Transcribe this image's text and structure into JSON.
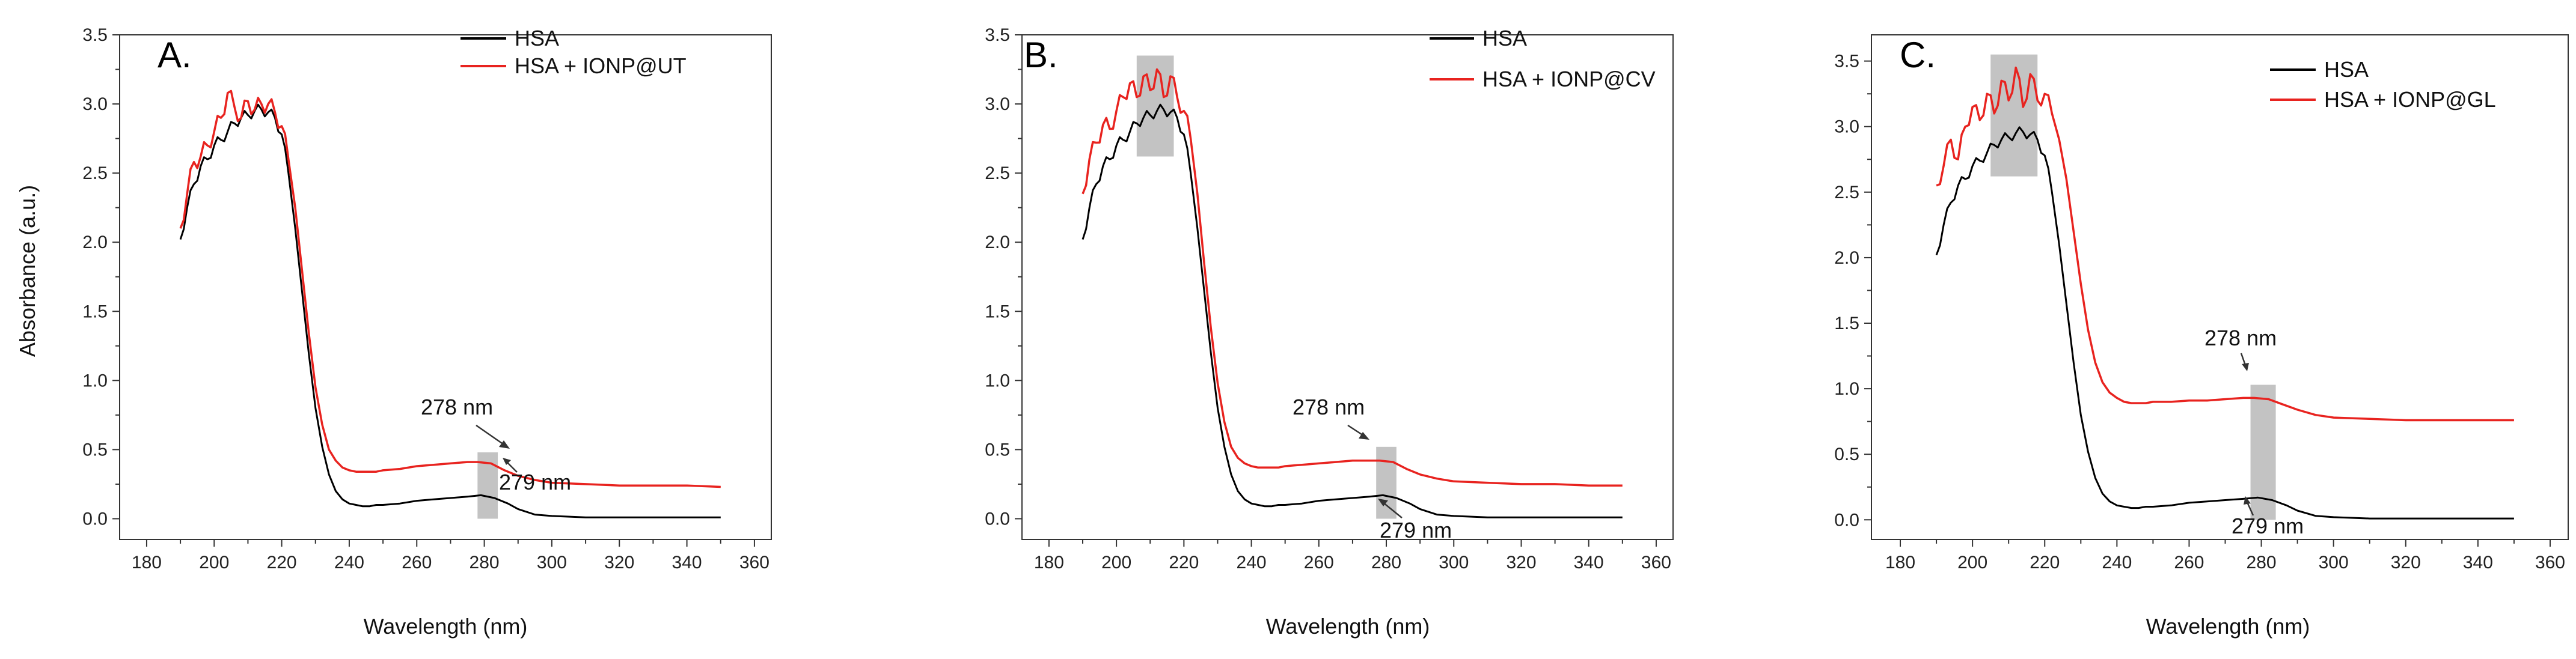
{
  "figure": {
    "background": "#ffffff"
  },
  "colors": {
    "hsa": "#000000",
    "ionp": "#e8231f",
    "highlight": "#bdbdbd",
    "axis": "#333333"
  },
  "chart_data": [
    {
      "panel_label": "A.",
      "type": "line",
      "xlabel": "Wavelength (nm)",
      "ylabel": "Absorbance (a.u.)",
      "xlim": [
        172,
        365
      ],
      "ylim": [
        -0.15,
        3.5
      ],
      "xticks": [
        180,
        200,
        220,
        240,
        260,
        280,
        300,
        320,
        340,
        360
      ],
      "yticks": [
        0.0,
        0.5,
        1.0,
        1.5,
        2.0,
        2.5,
        3.0,
        3.5
      ],
      "series": [
        {
          "name": "HSA",
          "color": "#000000",
          "x": [
            190,
            192,
            194,
            196,
            198,
            200,
            202,
            204,
            206,
            208,
            210,
            212,
            214,
            216,
            218,
            220,
            222,
            224,
            226,
            228,
            230,
            232,
            234,
            236,
            238,
            240,
            242,
            244,
            246,
            248,
            250,
            255,
            260,
            265,
            270,
            275,
            279,
            283,
            287,
            290,
            295,
            300,
            310,
            320,
            330,
            340,
            350
          ],
          "y": [
            2.02,
            2.25,
            2.42,
            2.55,
            2.6,
            2.7,
            2.74,
            2.8,
            2.86,
            2.9,
            2.92,
            2.95,
            2.96,
            2.94,
            2.9,
            2.78,
            2.5,
            2.1,
            1.65,
            1.2,
            0.8,
            0.52,
            0.32,
            0.2,
            0.14,
            0.11,
            0.1,
            0.09,
            0.09,
            0.1,
            0.1,
            0.11,
            0.13,
            0.14,
            0.15,
            0.16,
            0.17,
            0.15,
            0.11,
            0.07,
            0.03,
            0.02,
            0.01,
            0.01,
            0.01,
            0.01,
            0.01
          ]
        },
        {
          "name": "HSA + IONP@UT",
          "color": "#e8231f",
          "x": [
            190,
            192,
            194,
            196,
            198,
            200,
            202,
            204,
            206,
            208,
            210,
            212,
            214,
            216,
            218,
            220,
            222,
            224,
            226,
            228,
            230,
            232,
            234,
            236,
            238,
            240,
            242,
            244,
            246,
            248,
            250,
            255,
            260,
            265,
            270,
            275,
            278,
            282,
            286,
            290,
            295,
            300,
            310,
            320,
            330,
            340,
            350
          ],
          "y": [
            2.1,
            2.35,
            2.58,
            2.62,
            2.7,
            2.8,
            2.9,
            3.08,
            2.98,
            2.9,
            3.02,
            2.96,
            3.0,
            3.0,
            2.94,
            2.84,
            2.6,
            2.25,
            1.8,
            1.35,
            0.95,
            0.68,
            0.5,
            0.42,
            0.37,
            0.35,
            0.34,
            0.34,
            0.34,
            0.34,
            0.35,
            0.36,
            0.38,
            0.39,
            0.4,
            0.41,
            0.41,
            0.4,
            0.35,
            0.31,
            0.28,
            0.26,
            0.25,
            0.24,
            0.24,
            0.24,
            0.23
          ]
        }
      ],
      "annotations": [
        {
          "text": "278 nm"
        },
        {
          "text": "279 nm"
        }
      ],
      "highlight_bands": [
        {
          "x": [
            278,
            284
          ],
          "y": [
            0.0,
            0.48
          ]
        }
      ]
    },
    {
      "panel_label": "B.",
      "type": "line",
      "xlabel": "Wavelength (nm)",
      "ylabel": "",
      "xlim": [
        172,
        365
      ],
      "ylim": [
        -0.15,
        3.5
      ],
      "xticks": [
        180,
        200,
        220,
        240,
        260,
        280,
        300,
        320,
        340,
        360
      ],
      "yticks": [
        0.0,
        0.5,
        1.0,
        1.5,
        2.0,
        2.5,
        3.0,
        3.5
      ],
      "series": [
        {
          "name": "HSA",
          "color": "#000000",
          "x": [
            190,
            192,
            194,
            196,
            198,
            200,
            202,
            204,
            206,
            208,
            210,
            212,
            214,
            216,
            218,
            220,
            222,
            224,
            226,
            228,
            230,
            232,
            234,
            236,
            238,
            240,
            242,
            244,
            246,
            248,
            250,
            255,
            260,
            265,
            270,
            275,
            279,
            283,
            287,
            290,
            295,
            300,
            310,
            320,
            330,
            340,
            350
          ],
          "y": [
            2.02,
            2.25,
            2.42,
            2.55,
            2.6,
            2.7,
            2.74,
            2.8,
            2.86,
            2.9,
            2.92,
            2.95,
            2.96,
            2.94,
            2.9,
            2.78,
            2.5,
            2.1,
            1.65,
            1.2,
            0.8,
            0.52,
            0.32,
            0.2,
            0.14,
            0.11,
            0.1,
            0.09,
            0.09,
            0.1,
            0.1,
            0.11,
            0.13,
            0.14,
            0.15,
            0.16,
            0.17,
            0.15,
            0.11,
            0.07,
            0.03,
            0.02,
            0.01,
            0.01,
            0.01,
            0.01,
            0.01
          ]
        },
        {
          "name": "HSA + IONP@CV",
          "color": "#e8231f",
          "x": [
            190,
            192,
            194,
            196,
            198,
            200,
            202,
            204,
            206,
            208,
            210,
            212,
            214,
            216,
            218,
            220,
            222,
            224,
            226,
            228,
            230,
            232,
            234,
            236,
            238,
            240,
            242,
            244,
            246,
            248,
            250,
            255,
            260,
            265,
            270,
            275,
            278,
            282,
            286,
            290,
            295,
            300,
            310,
            320,
            330,
            340,
            350
          ],
          "y": [
            2.35,
            2.6,
            2.72,
            2.85,
            2.82,
            2.95,
            3.05,
            3.15,
            3.05,
            3.2,
            3.1,
            3.25,
            3.05,
            3.2,
            3.05,
            2.95,
            2.75,
            2.35,
            1.85,
            1.38,
            0.98,
            0.7,
            0.52,
            0.44,
            0.4,
            0.38,
            0.37,
            0.37,
            0.37,
            0.37,
            0.38,
            0.39,
            0.4,
            0.41,
            0.42,
            0.42,
            0.42,
            0.41,
            0.36,
            0.32,
            0.29,
            0.27,
            0.26,
            0.25,
            0.25,
            0.24,
            0.24
          ]
        }
      ],
      "annotations": [
        {
          "text": "278 nm"
        },
        {
          "text": "279 nm"
        }
      ],
      "highlight_bands": [
        {
          "x": [
            206,
            217
          ],
          "y": [
            2.62,
            3.35
          ]
        },
        {
          "x": [
            277,
            283
          ],
          "y": [
            0.0,
            0.52
          ]
        }
      ]
    },
    {
      "panel_label": "C.",
      "type": "line",
      "xlabel": "Wavelength (nm)",
      "ylabel": "",
      "xlim": [
        172,
        365
      ],
      "ylim": [
        -0.15,
        3.7
      ],
      "xticks": [
        180,
        200,
        220,
        240,
        260,
        280,
        300,
        320,
        340,
        360
      ],
      "yticks": [
        0.0,
        0.5,
        1.0,
        1.5,
        2.0,
        2.5,
        3.0,
        3.5
      ],
      "series": [
        {
          "name": "HSA",
          "color": "#000000",
          "x": [
            190,
            192,
            194,
            196,
            198,
            200,
            202,
            204,
            206,
            208,
            210,
            212,
            214,
            216,
            218,
            220,
            222,
            224,
            226,
            228,
            230,
            232,
            234,
            236,
            238,
            240,
            242,
            244,
            246,
            248,
            250,
            255,
            260,
            265,
            270,
            275,
            279,
            283,
            287,
            290,
            295,
            300,
            310,
            320,
            330,
            340,
            350
          ],
          "y": [
            2.02,
            2.25,
            2.42,
            2.55,
            2.6,
            2.7,
            2.74,
            2.8,
            2.86,
            2.9,
            2.92,
            2.95,
            2.96,
            2.94,
            2.9,
            2.78,
            2.5,
            2.1,
            1.65,
            1.2,
            0.8,
            0.52,
            0.32,
            0.2,
            0.14,
            0.11,
            0.1,
            0.09,
            0.09,
            0.1,
            0.1,
            0.11,
            0.13,
            0.14,
            0.15,
            0.16,
            0.17,
            0.15,
            0.11,
            0.07,
            0.03,
            0.02,
            0.01,
            0.01,
            0.01,
            0.01,
            0.01
          ]
        },
        {
          "name": "HSA + IONP@GL",
          "color": "#e8231f",
          "x": [
            190,
            192,
            194,
            196,
            198,
            200,
            202,
            204,
            206,
            208,
            210,
            212,
            214,
            216,
            218,
            220,
            222,
            224,
            226,
            228,
            230,
            232,
            234,
            236,
            238,
            240,
            242,
            244,
            246,
            248,
            250,
            255,
            260,
            265,
            270,
            275,
            278,
            282,
            286,
            290,
            295,
            300,
            310,
            320,
            330,
            340,
            350
          ],
          "y": [
            2.55,
            2.7,
            2.9,
            2.75,
            3.0,
            3.15,
            3.05,
            3.25,
            3.1,
            3.35,
            3.2,
            3.45,
            3.15,
            3.4,
            3.2,
            3.25,
            3.1,
            2.9,
            2.6,
            2.2,
            1.8,
            1.45,
            1.2,
            1.05,
            0.97,
            0.93,
            0.9,
            0.89,
            0.89,
            0.89,
            0.9,
            0.9,
            0.91,
            0.91,
            0.92,
            0.93,
            0.93,
            0.92,
            0.88,
            0.84,
            0.8,
            0.78,
            0.77,
            0.76,
            0.76,
            0.76,
            0.76
          ]
        }
      ],
      "annotations": [
        {
          "text": "278 nm"
        },
        {
          "text": "279 nm"
        }
      ],
      "highlight_bands": [
        {
          "x": [
            205,
            218
          ],
          "y": [
            2.62,
            3.55
          ]
        },
        {
          "x": [
            277,
            284
          ],
          "y": [
            0.0,
            1.03
          ]
        }
      ]
    }
  ]
}
